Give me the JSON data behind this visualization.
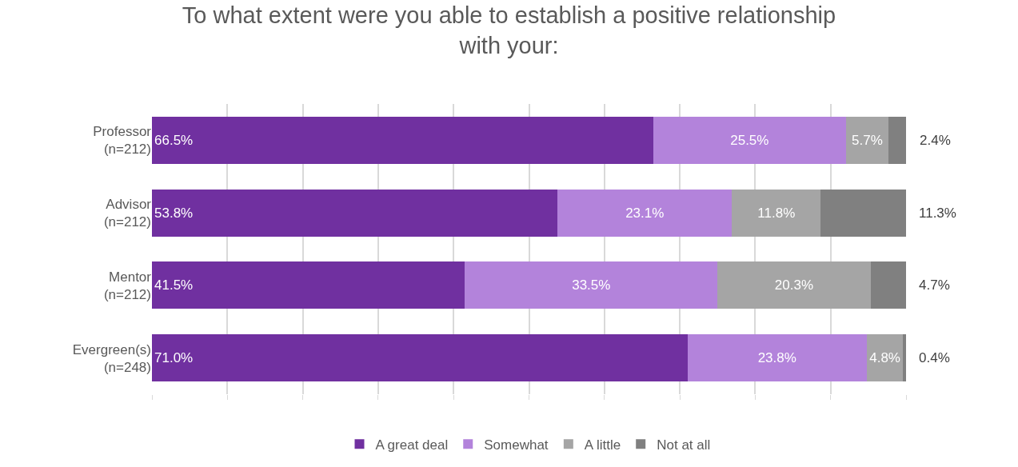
{
  "chart_data": {
    "type": "bar",
    "orientation": "horizontal",
    "stacked": true,
    "title": "To what extent were you able to establish a positive relationship\nwith your:",
    "categories": [
      "Professor\n(n=212)",
      "Advisor\n(n=212)",
      "Mentor\n(n=212)",
      "Evergreen(s)\n(n=248)"
    ],
    "series": [
      {
        "name": "A great deal",
        "color": "#7030a0",
        "values": [
          66.5,
          53.8,
          41.5,
          71.0
        ],
        "value_labels": [
          "66.5%",
          "53.8%",
          "41.5%",
          "71.0%"
        ]
      },
      {
        "name": "Somewhat",
        "color": "#b383db",
        "values": [
          25.5,
          23.1,
          33.5,
          23.8
        ],
        "value_labels": [
          "25.5%",
          "23.1%",
          "33.5%",
          "23.8%"
        ]
      },
      {
        "name": "A little",
        "color": "#a5a5a5",
        "values": [
          5.7,
          11.8,
          20.3,
          4.8
        ],
        "value_labels": [
          "5.7%",
          "11.8%",
          "20.3%",
          "4.8%"
        ]
      },
      {
        "name": "Not at all",
        "color": "#808080",
        "values": [
          2.4,
          11.3,
          4.7,
          0.4
        ],
        "value_labels": [
          "2.4%",
          "11.3%",
          "4.7%",
          "0.4%"
        ]
      }
    ],
    "xlim": [
      0,
      100
    ],
    "xticks": [
      {
        "value": 0,
        "label": null
      },
      {
        "value": 10,
        "label": null
      },
      {
        "value": 20,
        "label": null
      },
      {
        "value": 30,
        "label": null
      },
      {
        "value": 40,
        "label": null
      },
      {
        "value": 50,
        "label": null
      },
      {
        "value": 60,
        "label": null
      },
      {
        "value": 70,
        "label": null
      },
      {
        "value": 80,
        "label": null
      },
      {
        "value": 90,
        "label": null
      },
      {
        "value": 100,
        "label": null
      }
    ],
    "tick_labels": "y",
    "grid": "x",
    "legend": "bottom"
  }
}
